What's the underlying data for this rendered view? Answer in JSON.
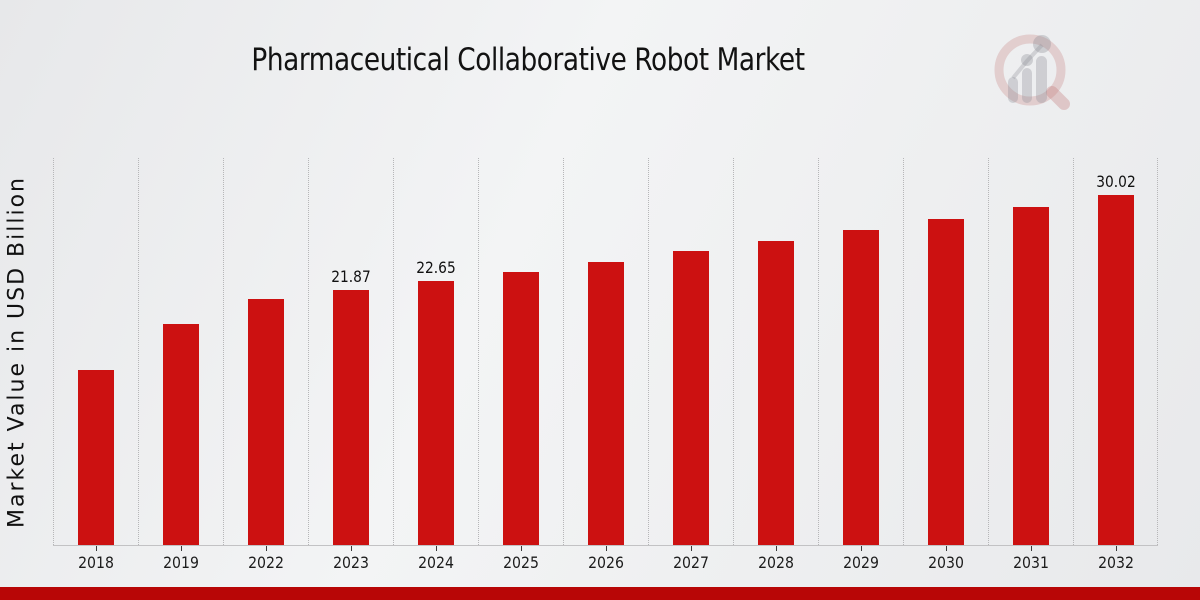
{
  "header": {
    "title": "Pharmaceutical Collaborative Robot Market"
  },
  "watermark": {
    "icon": "magnifier-bar-chart-logo"
  },
  "chart_data": {
    "type": "bar",
    "title": "Pharmaceutical Collaborative Robot Market",
    "xlabel": "",
    "ylabel": "Market Value in USD Billion",
    "categories": [
      "2018",
      "2019",
      "2022",
      "2023",
      "2024",
      "2025",
      "2026",
      "2027",
      "2028",
      "2029",
      "2030",
      "2031",
      "2032"
    ],
    "values": [
      15.0,
      19.0,
      21.11,
      21.87,
      22.65,
      23.46,
      24.31,
      25.18,
      26.08,
      27.01,
      27.98,
      28.98,
      30.02
    ],
    "data_labels": [
      "",
      "",
      "",
      "21.87",
      "22.65",
      "",
      "",
      "",
      "",
      "",
      "",
      "",
      "30.02"
    ],
    "ylim": [
      0,
      33.2
    ],
    "grid": "vertical-dotted",
    "legend": "none",
    "bar_color": "#cc1111",
    "gridline_color": "#b6b6b8",
    "axis_line_color": "#c2c2c4",
    "label_color": "#111111"
  },
  "footer": {
    "banner_color": "#b80606"
  }
}
